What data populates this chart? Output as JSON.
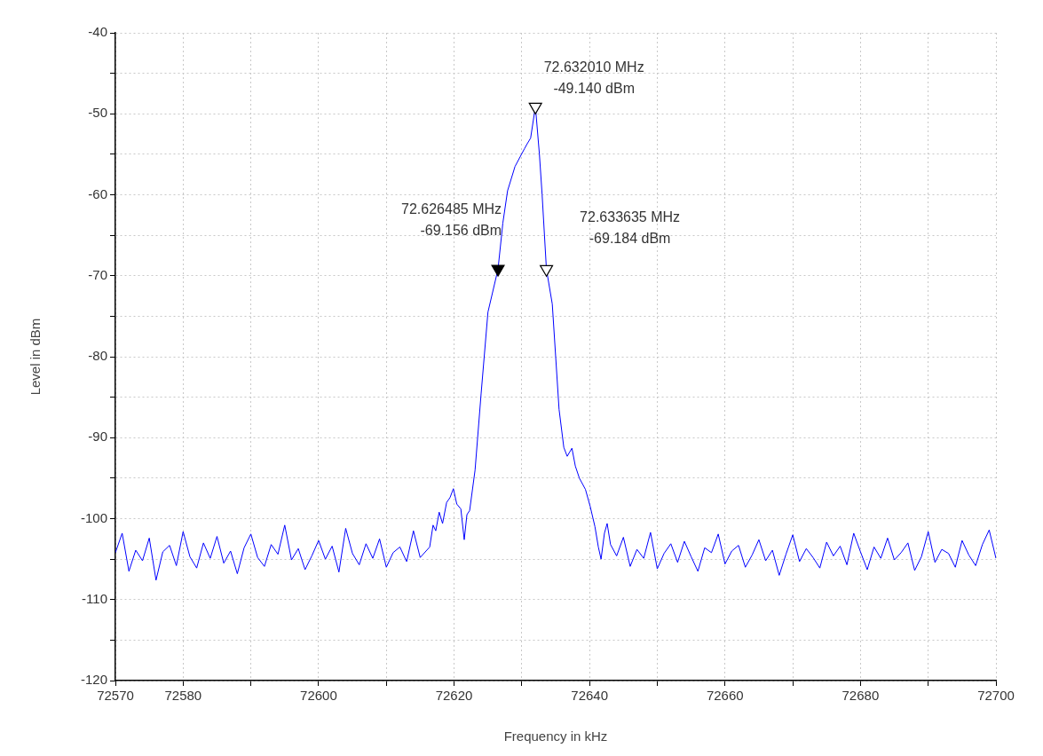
{
  "chart_data": {
    "type": "line",
    "xlabel": "Frequency in kHz",
    "ylabel": "Level in dBm",
    "xlim": [
      72570,
      72700
    ],
    "xticks": [
      72570,
      72580,
      {
        "value": 72590,
        "label": null
      },
      72600,
      {
        "value": 72610,
        "label": null
      },
      72620,
      {
        "value": 72630,
        "label": null
      },
      72640,
      {
        "value": 72650,
        "label": null
      },
      72660,
      {
        "value": 72670,
        "label": null
      },
      72680,
      {
        "value": 72690,
        "label": null
      },
      72700
    ],
    "ylim": [
      -120,
      -40
    ],
    "yticks": [
      -120,
      {
        "value": -115,
        "label": null
      },
      -110,
      {
        "value": -105,
        "label": null
      },
      -100,
      {
        "value": -95,
        "label": null
      },
      -90,
      {
        "value": -85,
        "label": null
      },
      -80,
      {
        "value": -75,
        "label": null
      },
      -70,
      {
        "value": -65,
        "label": null
      },
      -60,
      {
        "value": -55,
        "label": null
      },
      -50,
      {
        "value": -45,
        "label": null
      },
      -40
    ],
    "grid": true,
    "legend": false,
    "line_style": "solid",
    "series": [
      {
        "type": "line",
        "color": "#0000ff",
        "marker": "none",
        "x": [
          72570,
          72571,
          72572,
          72573,
          72574,
          72575,
          72576,
          72577,
          72578,
          72579,
          72580,
          72581,
          72582,
          72583,
          72584,
          72585,
          72586,
          72587,
          72588,
          72589,
          72590,
          72591,
          72592,
          72593,
          72594,
          72595,
          72596,
          72597,
          72598,
          72599,
          72600,
          72601,
          72602,
          72603,
          72604,
          72605,
          72606,
          72607,
          72608,
          72609,
          72610,
          72611,
          72612,
          72613,
          72614,
          72615,
          72616.4,
          72616.9,
          72617.3,
          72617.8,
          72618.3,
          72618.9,
          72619.4,
          72619.9,
          72620.4,
          72621.0,
          72621.5,
          72621.9,
          72622.3,
          72623.1,
          72624.0,
          72625.0,
          72626.485,
          72627.2,
          72627.9,
          72629.0,
          72630.4,
          72630.8,
          72631.3,
          72632.01,
          72632.6,
          72633.0,
          72633.635,
          72634.5,
          72635.5,
          72636.2,
          72636.7,
          72637.4,
          72637.9,
          72638.5,
          72639.4,
          72640.1,
          72640.8,
          72641.3,
          72641.7,
          72642.2,
          72642.6,
          72643.1,
          72644,
          72645,
          72646,
          72647,
          72648,
          72649,
          72650,
          72651,
          72652,
          72653,
          72654,
          72655,
          72656,
          72657,
          72658,
          72659,
          72660,
          72661,
          72662,
          72663,
          72664,
          72665,
          72666,
          72667,
          72668,
          72669,
          72670,
          72671,
          72672,
          72673,
          72674,
          72675,
          72676,
          72677,
          72678,
          72679,
          72680,
          72681,
          72682,
          72683,
          72684,
          72685,
          72686,
          72687,
          72688,
          72689,
          72690,
          72691,
          72692,
          72693,
          72694,
          72695,
          72696,
          72697,
          72698,
          72699,
          72700
        ],
        "values": [
          -104.2,
          -101.8,
          -106.5,
          -103.9,
          -105.2,
          -102.4,
          -107.6,
          -104.1,
          -103.3,
          -105.8,
          -101.6,
          -104.7,
          -106.1,
          -103.0,
          -104.9,
          -102.2,
          -105.5,
          -104.0,
          -106.8,
          -103.6,
          -101.9,
          -104.8,
          -105.9,
          -103.2,
          -104.4,
          -100.8,
          -105.1,
          -103.7,
          -106.3,
          -104.6,
          -102.7,
          -105.0,
          -103.4,
          -106.6,
          -101.2,
          -104.3,
          -105.7,
          -103.1,
          -104.9,
          -102.5,
          -106.0,
          -104.2,
          -103.5,
          -105.3,
          -101.5,
          -104.8,
          -103.5,
          -100.8,
          -101.5,
          -99.2,
          -100.6,
          -98.0,
          -97.4,
          -96.3,
          -98.2,
          -98.8,
          -102.6,
          -99.5,
          -99.0,
          -94.0,
          -84.5,
          -74.5,
          -69.2,
          -63.5,
          -59.5,
          -56.5,
          -54.3,
          -53.7,
          -53.0,
          -49.1,
          -55.0,
          -60.0,
          -69.2,
          -73.5,
          -86.5,
          -91.2,
          -92.3,
          -91.3,
          -93.5,
          -95.0,
          -96.4,
          -98.5,
          -101.0,
          -103.5,
          -105.0,
          -101.8,
          -100.6,
          -103.2,
          -104.6,
          -102.3,
          -105.9,
          -103.8,
          -104.9,
          -101.7,
          -106.2,
          -104.3,
          -103.1,
          -105.4,
          -102.8,
          -104.7,
          -106.5,
          -103.6,
          -104.2,
          -101.9,
          -105.6,
          -104.0,
          -103.3,
          -106.0,
          -104.5,
          -102.6,
          -105.2,
          -103.9,
          -107.0,
          -104.4,
          -102.0,
          -105.3,
          -103.7,
          -104.8,
          -106.1,
          -102.9,
          -104.6,
          -103.4,
          -105.7,
          -101.8,
          -104.1,
          -106.3,
          -103.5,
          -104.9,
          -102.4,
          -105.1,
          -104.2,
          -103.0,
          -106.4,
          -104.7,
          -101.6,
          -105.4,
          -103.8,
          -104.3,
          -106.0,
          -102.7,
          -104.5,
          -105.8,
          -103.2,
          -101.4,
          -104.9
        ]
      },
      {
        "type": "scatter",
        "color": "#000000",
        "marker": "triangle",
        "x": [
          72626.485,
          72632.01,
          72633.635
        ],
        "values": [
          -69.156,
          -49.14,
          -69.184
        ],
        "colors": [
          "#000000",
          "#ffffff",
          "#ffffff"
        ]
      }
    ],
    "annotations": [
      {
        "text": "72.626485 MHz\n-69.156 dBm",
        "x": 72626.485,
        "y": -69.156
      },
      {
        "text": "72.632010 MHz\n-49.140 dBm",
        "x": 72632.01,
        "y": -49.14
      },
      {
        "text": "72.633635 MHz\n-69.184 dBm",
        "x": 72633.635,
        "y": -69.184
      }
    ]
  }
}
